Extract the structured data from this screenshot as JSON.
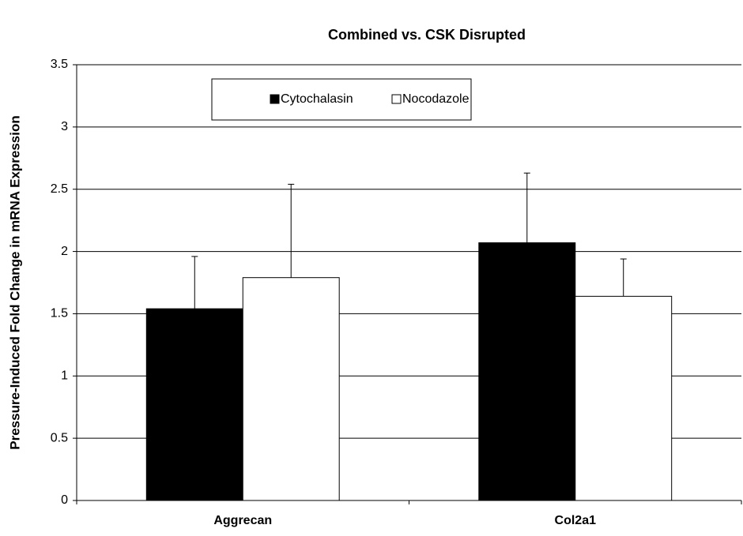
{
  "chart_data": {
    "type": "bar",
    "title": "Combined vs. CSK Disrupted",
    "ylabel": "Pressure-Induced Fold Change in mRNA Expression",
    "categories": [
      "Aggrecan",
      "Col2a1"
    ],
    "series": [
      {
        "name": "Cytochalasin",
        "color": "#000000",
        "values": [
          1.54,
          2.07
        ],
        "errors": [
          0.42,
          0.56
        ]
      },
      {
        "name": "Nocodazole",
        "color": "#ffffff",
        "values": [
          1.79,
          1.64
        ],
        "errors": [
          0.75,
          0.3
        ]
      }
    ],
    "ylim": [
      0,
      3.5
    ],
    "yticks": [
      0,
      0.5,
      1,
      1.5,
      2,
      2.5,
      3,
      3.5
    ],
    "grid": true,
    "legend": "top"
  }
}
